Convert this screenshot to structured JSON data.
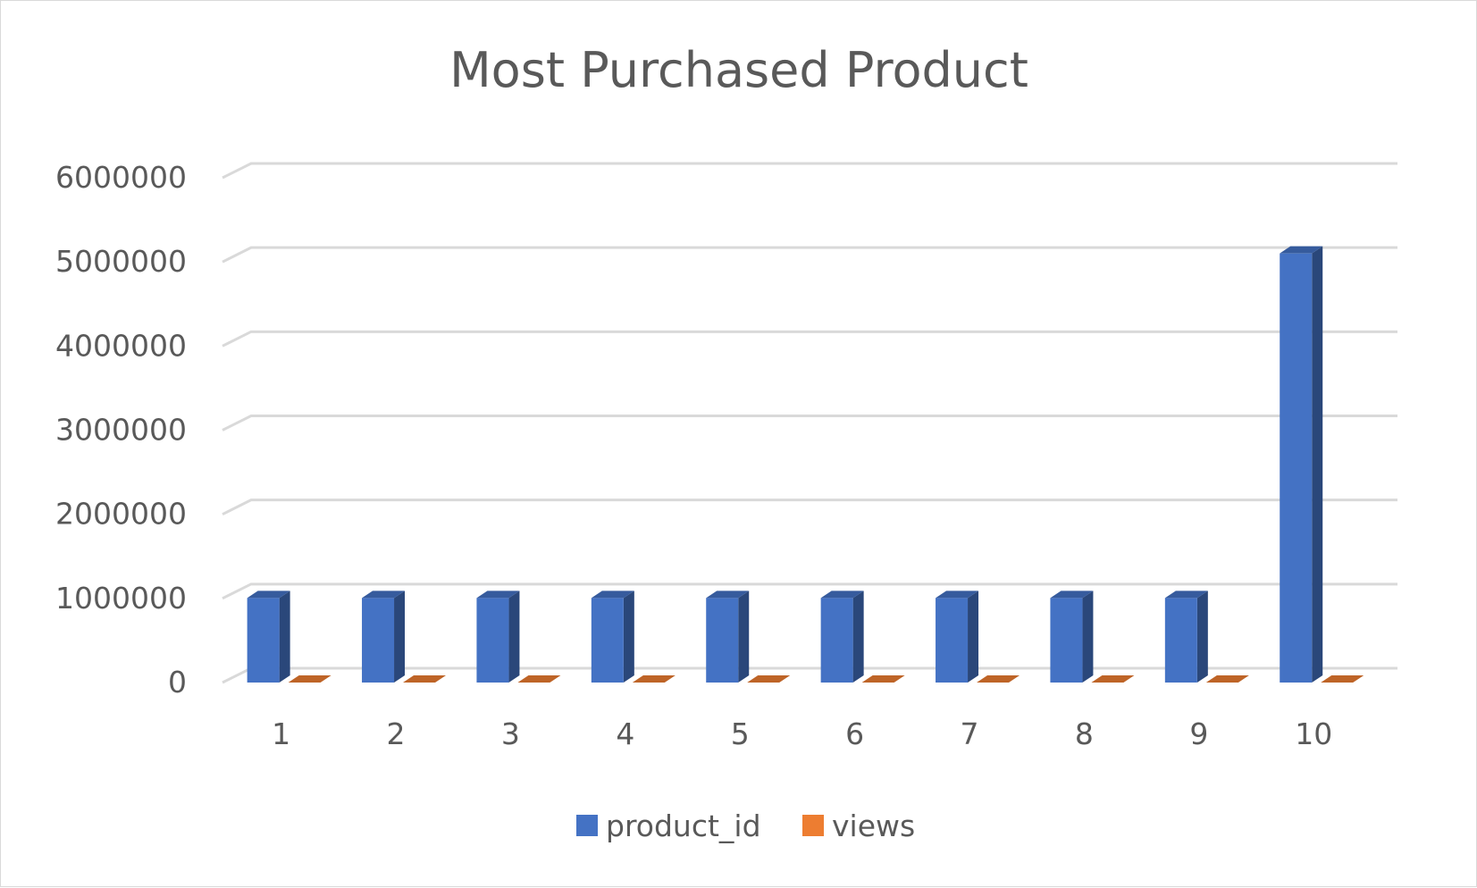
{
  "chart_data": {
    "type": "bar",
    "style": "3d-clustered-column",
    "title": "Most Purchased Product",
    "categories": [
      "1",
      "2",
      "3",
      "4",
      "5",
      "6",
      "7",
      "8",
      "9",
      "10"
    ],
    "series": [
      {
        "name": "product_id",
        "color": "#4472c4",
        "values": [
          1004856,
          1004856,
          1004856,
          1004856,
          1004856,
          1004856,
          1004856,
          1004856,
          1004856,
          5100816
        ]
      },
      {
        "name": "views",
        "color": "#ed7d31",
        "values": [
          108,
          6,
          4,
          3,
          3,
          3,
          3,
          3,
          3,
          3
        ]
      }
    ],
    "ylim": [
      0,
      6000000
    ],
    "yticks": [
      "0",
      "1000000",
      "2000000",
      "3000000",
      "4000000",
      "5000000",
      "6000000"
    ],
    "grid": true,
    "legend": "bottom"
  }
}
